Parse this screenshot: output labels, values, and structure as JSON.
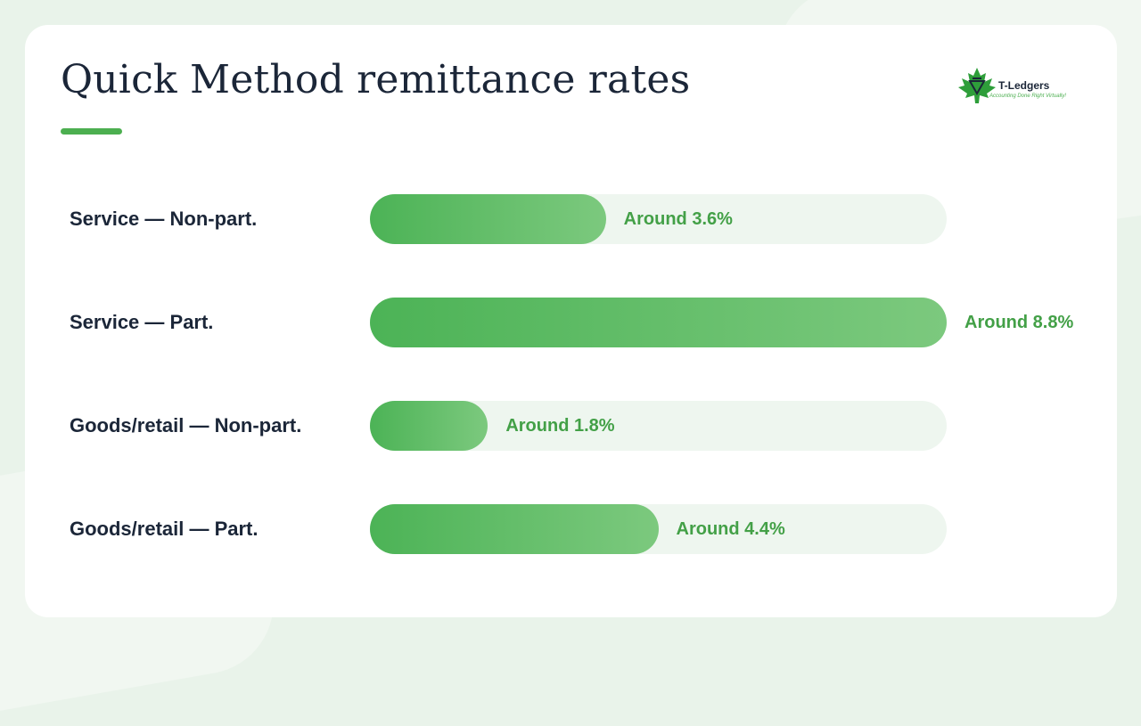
{
  "slide": {
    "title": "Quick Method remittance rates"
  },
  "logo": {
    "name": "T-Ledgers",
    "tagline": "Accounting Done Right Virtually!"
  },
  "colors": {
    "accent": "#4caf50",
    "bar_start": "#4cb356",
    "bar_end": "#7cc97e",
    "track": "#eef6ef",
    "text": "#1b2638",
    "value_text": "#43a047"
  },
  "chart_data": {
    "type": "bar",
    "orientation": "horizontal",
    "title": "Quick Method remittance rates",
    "categories": [
      "Service — Non-part.",
      "Service — Part.",
      "Goods/retail — Non-part.",
      "Goods/retail — Part."
    ],
    "values": [
      3.6,
      8.8,
      1.8,
      4.4
    ],
    "value_labels": [
      "Around 3.6%",
      "Around 8.8%",
      "Around 1.8%",
      "Around 4.4%"
    ],
    "xlim": [
      0,
      8.8
    ],
    "unit": "%",
    "grid": false,
    "legend": "none"
  }
}
